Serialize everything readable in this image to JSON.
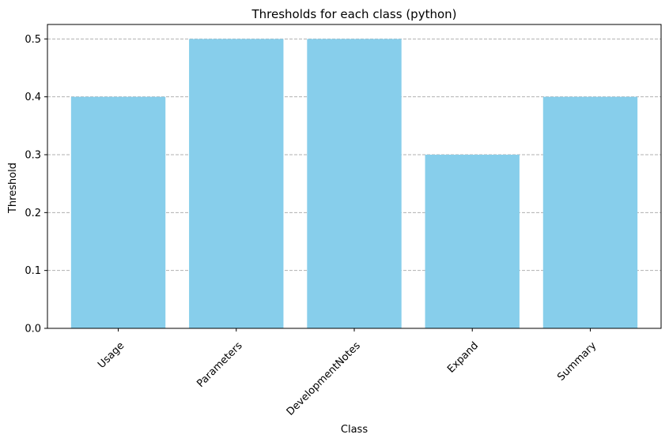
{
  "chart_data": {
    "type": "bar",
    "title": "Thresholds for each class (python)",
    "xlabel": "Class",
    "ylabel": "Threshold",
    "categories": [
      "Usage",
      "Parameters",
      "DevelopmentNotes",
      "Expand",
      "Summary"
    ],
    "values": [
      0.4,
      0.5,
      0.5,
      0.3,
      0.4
    ],
    "ylim": [
      0,
      0.525
    ],
    "yticks": [
      0.0,
      0.1,
      0.2,
      0.3,
      0.4,
      0.5
    ],
    "ytick_labels": [
      "0.0",
      "0.1",
      "0.2",
      "0.3",
      "0.4",
      "0.5"
    ],
    "grid": "y-dashed",
    "bar_color": "#87CEEB",
    "grid_color": "#b0b0b0"
  }
}
